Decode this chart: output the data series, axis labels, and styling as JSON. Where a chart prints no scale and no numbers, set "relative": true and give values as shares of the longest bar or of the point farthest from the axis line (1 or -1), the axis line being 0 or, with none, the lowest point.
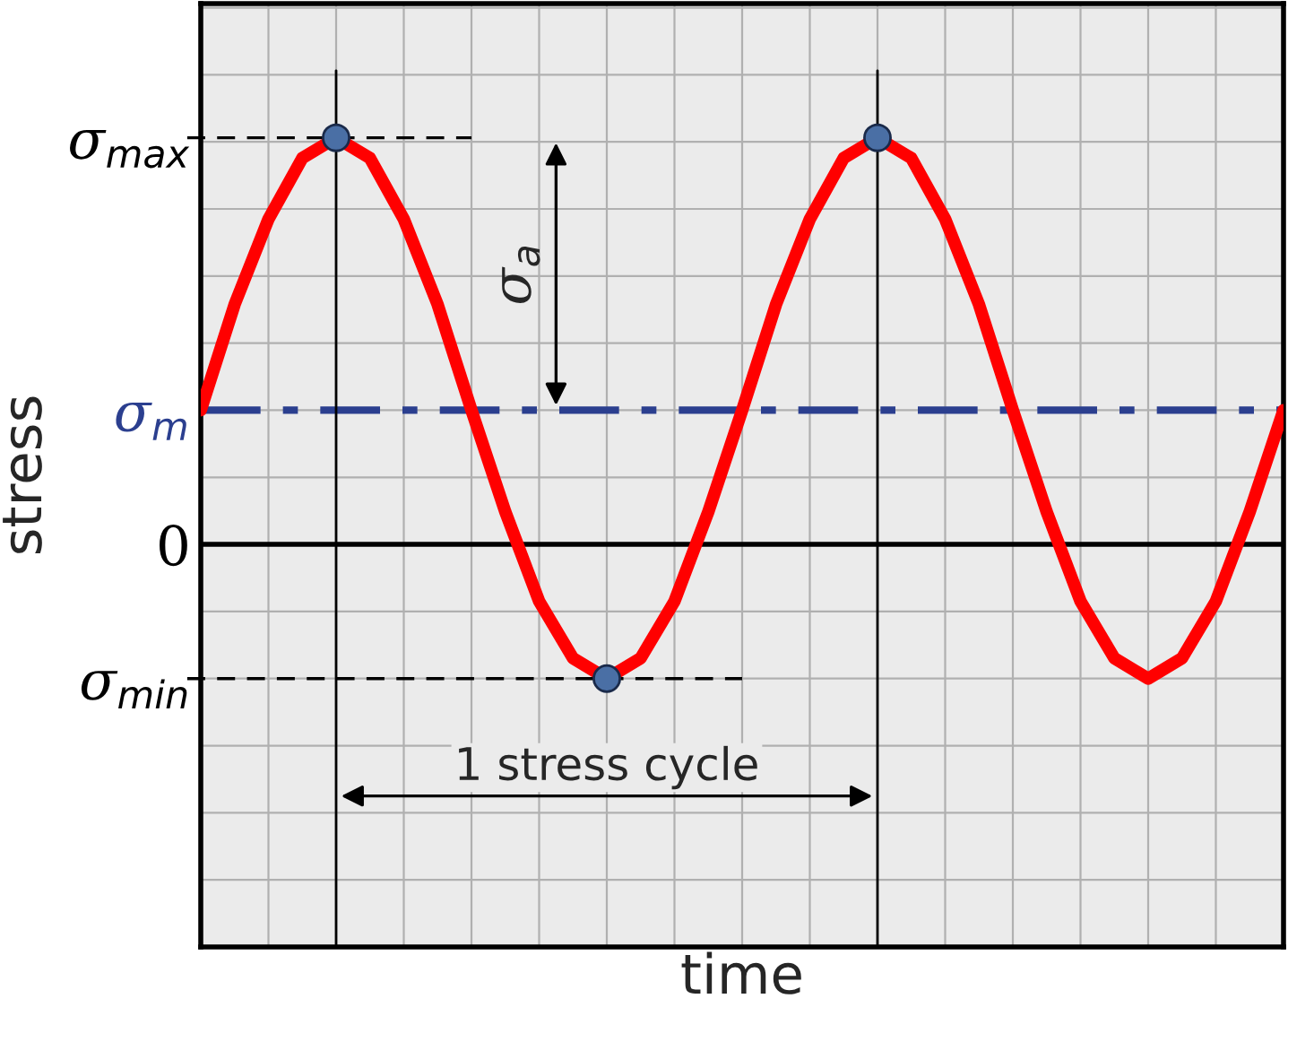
{
  "chart_data": {
    "type": "line",
    "relative": true,
    "xlabel": "time",
    "ylabel": "stress",
    "categories": [
      null,
      null,
      null,
      null,
      null,
      null,
      null,
      null,
      null,
      null,
      null,
      null,
      null,
      null,
      null,
      null,
      null,
      null,
      null,
      null,
      null,
      null,
      null,
      null,
      null,
      null,
      null,
      null,
      null,
      null,
      null,
      null,
      null
    ],
    "series": [
      {
        "color": "#ff0000",
        "values": [
          0.33,
          0.59,
          0.8,
          0.95,
          1,
          0.95,
          0.8,
          0.59,
          0.33,
          0.08,
          -0.14,
          -0.28,
          -0.33,
          -0.28,
          -0.14,
          0.08,
          0.33,
          0.59,
          0.8,
          0.95,
          1,
          0.95,
          0.8,
          0.59,
          0.33,
          0.08,
          -0.14,
          -0.28,
          -0.33,
          -0.28,
          -0.14,
          0.08,
          0.33
        ]
      }
    ],
    "ref_lines": [
      {
        "axis": "y",
        "value": 1,
        "label": "σ$_{max}$",
        "color": "#000000",
        "line_style": "dashed"
      },
      {
        "axis": "y",
        "value": 0.33,
        "label": "σ$_{m}$",
        "color": "#2b3f8f",
        "line_style": "dashdot"
      },
      {
        "axis": "y",
        "value": 0,
        "label": "0",
        "color": "#000000",
        "line_style": "solid"
      },
      {
        "axis": "y",
        "value": -0.33,
        "label": "σ$_{min}$",
        "color": "#000000",
        "line_style": "dashed"
      }
    ],
    "annotations": [
      "σ$_{a}$",
      "1 stress cycle"
    ],
    "grid": true
  }
}
